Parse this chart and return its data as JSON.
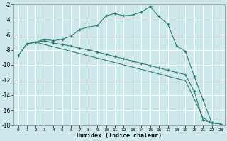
{
  "xlabel": "Humidex (Indice chaleur)",
  "xlim": [
    -0.5,
    23.5
  ],
  "ylim": [
    -18,
    -2
  ],
  "xticks": [
    0,
    1,
    2,
    3,
    4,
    5,
    6,
    7,
    8,
    9,
    10,
    11,
    12,
    13,
    14,
    15,
    16,
    17,
    18,
    19,
    20,
    21,
    22,
    23
  ],
  "yticks": [
    -18,
    -16,
    -14,
    -12,
    -10,
    -8,
    -6,
    -4,
    -2
  ],
  "bg_color": "#cce8ea",
  "grid_color": "#b0d8da",
  "line_color": "#2e7d6e",
  "line1_x": [
    0,
    1,
    2,
    3,
    4,
    5,
    6,
    7,
    8,
    9,
    10,
    11,
    12,
    13,
    14,
    15,
    16,
    17,
    18,
    19,
    20,
    21,
    22,
    23
  ],
  "line1_y": [
    -8.8,
    -7.2,
    -7.0,
    -6.6,
    -6.8,
    -6.6,
    -6.2,
    -5.3,
    -5.0,
    -4.8,
    -3.5,
    -3.2,
    -3.5,
    -3.4,
    -3.0,
    -2.3,
    -3.6,
    -4.6,
    -7.5,
    -8.2,
    -11.5,
    -14.6,
    -17.7,
    -17.8
  ],
  "line2_x": [
    1,
    2,
    3,
    4,
    5,
    6,
    7,
    8,
    9,
    10,
    11,
    12,
    13,
    14,
    15,
    16,
    17,
    18,
    19,
    20,
    21,
    22,
    23
  ],
  "line2_y": [
    -7.2,
    -7.0,
    -6.8,
    -7.1,
    -7.3,
    -7.5,
    -7.8,
    -8.0,
    -8.3,
    -8.6,
    -8.9,
    -9.2,
    -9.5,
    -9.8,
    -10.1,
    -10.4,
    -10.7,
    -11.0,
    -11.3,
    -13.5,
    -17.3,
    -17.7,
    -17.8
  ],
  "line3_x": [
    0,
    1,
    2,
    3,
    4,
    5,
    6,
    7,
    8,
    9,
    10,
    11,
    12,
    13,
    14,
    15,
    16,
    17,
    18,
    19,
    20,
    21,
    22,
    23
  ],
  "line3_y": [
    -8.8,
    -7.2,
    -7.0,
    -7.3,
    -7.6,
    -7.9,
    -8.2,
    -8.5,
    -8.8,
    -9.1,
    -9.4,
    -9.7,
    -10.0,
    -10.3,
    -10.6,
    -10.9,
    -11.2,
    -11.5,
    -11.8,
    -12.1,
    -14.5,
    -17.0,
    -17.7,
    -17.8
  ]
}
